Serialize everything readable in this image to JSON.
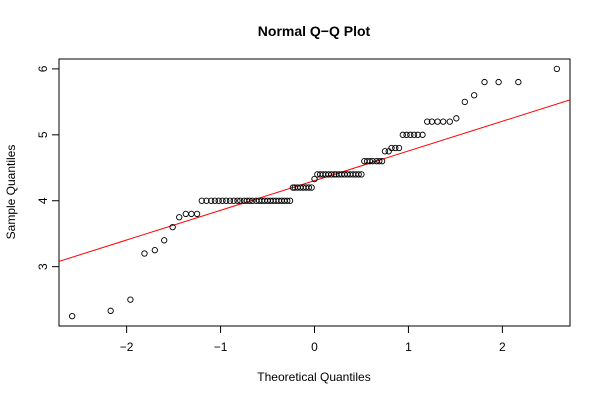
{
  "chart_data": {
    "type": "scatter",
    "title": "Normal Q−Q Plot",
    "xlabel": "Theoretical Quantiles",
    "ylabel": "Sample Quantiles",
    "xlim": [
      -2.72,
      2.72
    ],
    "ylim": [
      2.1,
      6.15
    ],
    "xticks": [
      -2,
      -1,
      0,
      1,
      2
    ],
    "xtick_labels": [
      "−2",
      "−1",
      "0",
      "1",
      "2"
    ],
    "yticks": [
      3,
      4,
      5,
      6
    ],
    "ytick_labels": [
      "3",
      "4",
      "5",
      "6"
    ],
    "grid": false,
    "reference_line": {
      "color": "#ff0000",
      "x": [
        -2.72,
        2.72
      ],
      "y": [
        3.08,
        5.53
      ]
    },
    "point_color": "#000000",
    "series": [
      {
        "x": [
          -2.58,
          -2.17,
          -1.96,
          -1.81,
          -1.7,
          -1.6,
          -1.51,
          -1.44,
          -1.37,
          -1.31,
          -1.25,
          -1.2,
          -1.15,
          -1.1,
          -1.06,
          -1.02,
          -0.98,
          -0.94,
          -0.9,
          -0.86,
          -0.82,
          -0.79,
          -0.75,
          -0.72,
          -0.69,
          -0.66,
          -0.62,
          -0.59,
          -0.56,
          -0.53,
          -0.5,
          -0.47,
          -0.44,
          -0.41,
          -0.38,
          -0.35,
          -0.32,
          -0.29,
          -0.26,
          -0.23,
          -0.21,
          -0.18,
          -0.15,
          -0.12,
          -0.09,
          -0.06,
          -0.03,
          0.0,
          0.03,
          0.06,
          0.09,
          0.12,
          0.15,
          0.18,
          0.21,
          0.23,
          0.26,
          0.29,
          0.32,
          0.35,
          0.38,
          0.41,
          0.44,
          0.47,
          0.5,
          0.53,
          0.56,
          0.59,
          0.62,
          0.66,
          0.69,
          0.72,
          0.75,
          0.79,
          0.82,
          0.86,
          0.9,
          0.94,
          0.98,
          1.02,
          1.06,
          1.1,
          1.15,
          1.2,
          1.25,
          1.31,
          1.37,
          1.44,
          1.51,
          1.6,
          1.7,
          1.81,
          1.96,
          2.17,
          2.58
        ],
        "y": [
          2.25,
          2.33,
          2.5,
          3.2,
          3.25,
          3.4,
          3.6,
          3.75,
          3.8,
          3.8,
          3.8,
          4.0,
          4.0,
          4.0,
          4.0,
          4.0,
          4.0,
          4.0,
          4.0,
          4.0,
          4.0,
          4.0,
          4.0,
          4.0,
          4.0,
          4.0,
          4.0,
          4.0,
          4.0,
          4.0,
          4.0,
          4.0,
          4.0,
          4.0,
          4.0,
          4.0,
          4.0,
          4.0,
          4.0,
          4.2,
          4.2,
          4.2,
          4.2,
          4.2,
          4.2,
          4.2,
          4.2,
          4.33,
          4.4,
          4.4,
          4.4,
          4.4,
          4.4,
          4.4,
          4.4,
          4.4,
          4.4,
          4.4,
          4.4,
          4.4,
          4.4,
          4.4,
          4.4,
          4.4,
          4.4,
          4.6,
          4.6,
          4.6,
          4.6,
          4.6,
          4.6,
          4.6,
          4.75,
          4.75,
          4.8,
          4.8,
          4.8,
          5.0,
          5.0,
          5.0,
          5.0,
          5.0,
          5.0,
          5.2,
          5.2,
          5.2,
          5.2,
          5.2,
          5.25,
          5.5,
          5.6,
          5.8,
          5.8,
          5.8,
          6.0
        ]
      }
    ]
  }
}
